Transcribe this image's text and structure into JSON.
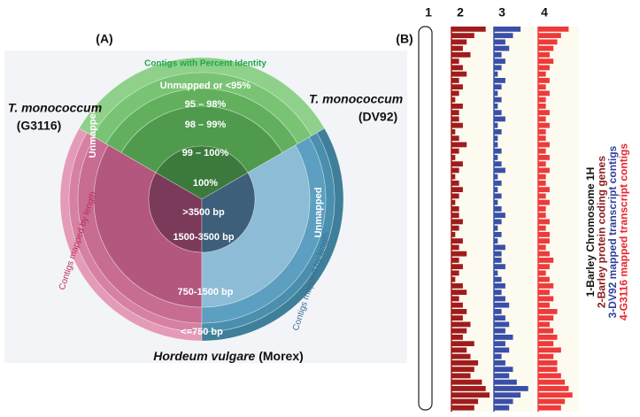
{
  "panel_a": {
    "label": "(A)",
    "identity_title": "Contigs with Percent Identity",
    "identity_rings": [
      "Unmapped or <95%",
      "95 – 98%",
      "98 – 99%",
      "99 – 100%",
      "100%"
    ],
    "length_rings": [
      ">3500 bp",
      "1500-3500 bp",
      "750-1500 bp",
      "<=750 bp"
    ],
    "unmapped_left": "Unmapped",
    "unmapped_right": "Unmapped",
    "length_title_left": "Contigs mapped by length",
    "length_title_right": "Contigs mapped by length",
    "left_species": "T. monococcum",
    "left_accession": "(G3116)",
    "right_species": "T. monococcum",
    "right_accession": "(DV92)",
    "bottom_species": "Hordeum vulgare",
    "bottom_accession": " (Morex)"
  },
  "panel_b": {
    "label": "(B)",
    "columns": [
      "1",
      "2",
      "3",
      "4"
    ],
    "legend": [
      {
        "text": "1-Barley Chromosome 1H",
        "color": "#111111"
      },
      {
        "text": "2-Barley protein coding genes",
        "color": "#8b1a1a"
      },
      {
        "text": "3-DV92 mapped transcript contigs",
        "color": "#2f3f9a"
      },
      {
        "text": "4-G3116 mapped transcript contigs",
        "color": "#e8262c"
      }
    ],
    "tracks": [
      {
        "color": "#a01c1c",
        "values": [
          9,
          6,
          4,
          3,
          5,
          2,
          3,
          4,
          2,
          3,
          2,
          1,
          3,
          2,
          2,
          3,
          1,
          2,
          4,
          2,
          1,
          3,
          2,
          1,
          2,
          3,
          2,
          1,
          2,
          2,
          3,
          2,
          1,
          3,
          2,
          4,
          2,
          3,
          2,
          1,
          3,
          4,
          2,
          3,
          4,
          3,
          5,
          4,
          3,
          6,
          4,
          5,
          7,
          6,
          5,
          8,
          9,
          10,
          7,
          6
        ]
      },
      {
        "color": "#3a4fa8",
        "values": [
          7,
          5,
          3,
          4,
          2,
          3,
          2,
          1,
          3,
          2,
          1,
          2,
          1,
          2,
          3,
          1,
          2,
          1,
          1,
          2,
          1,
          2,
          3,
          1,
          2,
          1,
          2,
          1,
          2,
          3,
          2,
          1,
          2,
          1,
          3,
          2,
          2,
          3,
          1,
          2,
          3,
          2,
          3,
          4,
          2,
          3,
          4,
          3,
          5,
          3,
          4,
          2,
          3,
          5,
          4,
          6,
          9,
          7,
          5,
          4
        ]
      },
      {
        "color": "#ee3a3a",
        "values": [
          8,
          6,
          5,
          4,
          3,
          4,
          3,
          2,
          3,
          2,
          3,
          2,
          2,
          3,
          2,
          3,
          2,
          2,
          3,
          2,
          3,
          2,
          3,
          2,
          2,
          3,
          2,
          3,
          2,
          2,
          3,
          2,
          3,
          3,
          2,
          3,
          4,
          3,
          2,
          3,
          4,
          3,
          4,
          3,
          5,
          4,
          3,
          4,
          5,
          4,
          6,
          4,
          5,
          5,
          6,
          7,
          8,
          9,
          7,
          6
        ]
      }
    ]
  }
}
